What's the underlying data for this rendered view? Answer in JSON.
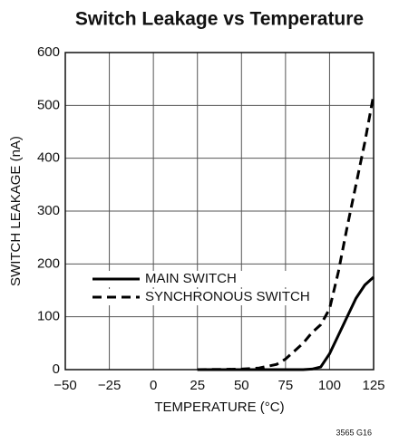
{
  "chart_data": {
    "type": "line",
    "title": "Switch Leakage vs Temperature",
    "x_label": "TEMPERATURE (°C)",
    "y_label": "SWITCH LEAKAGE (nA)",
    "annotation": "3565 G16",
    "x": [
      25,
      50,
      60,
      70,
      75,
      80,
      85,
      90,
      95,
      100,
      105,
      110,
      115,
      120,
      125
    ],
    "series": [
      {
        "name": "MAIN SWITCH",
        "color": "#000000",
        "linestyle": "solid",
        "values": [
          0,
          0,
          0,
          0,
          0,
          0,
          0,
          1,
          5,
          30,
          65,
          100,
          135,
          160,
          175
        ]
      },
      {
        "name": "SYNCHRONOUS SWITCH",
        "color": "#000000",
        "linestyle": "dashed",
        "values": [
          0,
          1,
          3,
          10,
          20,
          35,
          50,
          70,
          85,
          115,
          185,
          270,
          350,
          430,
          520
        ]
      }
    ],
    "xlim": [
      -50,
      125
    ],
    "xticks": [
      {
        "value": -50,
        "label": "−50"
      },
      {
        "value": -25,
        "label": "−25"
      },
      0,
      25,
      50,
      75,
      100,
      125
    ],
    "ylim": [
      0,
      600
    ],
    "yticks": [
      0,
      100,
      200,
      300,
      400,
      500,
      600
    ],
    "grid": true,
    "legend": "lower left"
  }
}
